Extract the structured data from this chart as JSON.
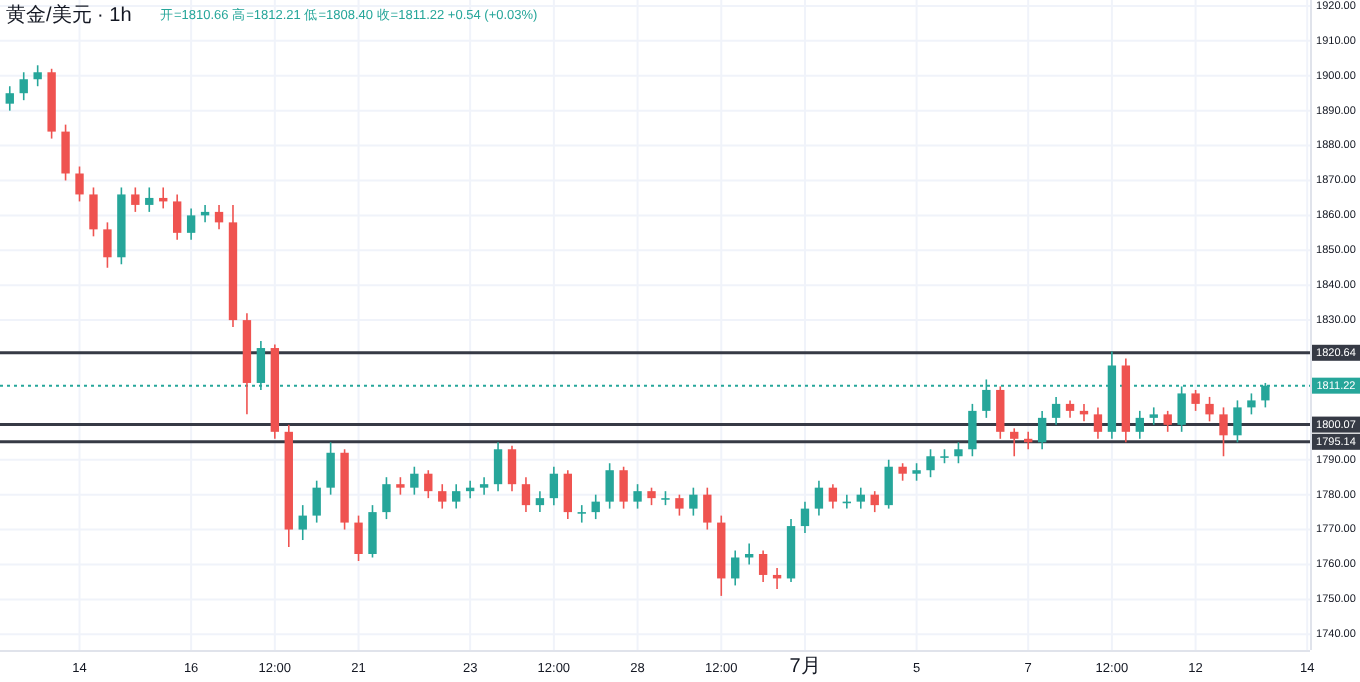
{
  "chart_data": {
    "type": "candlestick",
    "title": "黄金/美元 · 1h",
    "annotations": [
      "开=1810.66 高=1812.21 低=1808.40 收=1811.22 +0.54 (+0.03%)"
    ],
    "categories": [
      null,
      null,
      null,
      null,
      null,
      "14",
      null,
      null,
      null,
      null,
      null,
      null,
      null,
      "16",
      null,
      null,
      null,
      null,
      null,
      "12:00",
      null,
      null,
      null,
      null,
      null,
      "21",
      null,
      null,
      null,
      null,
      null,
      null,
      null,
      "23",
      null,
      null,
      null,
      null,
      null,
      "12:00",
      null,
      null,
      null,
      null,
      null,
      "28",
      null,
      null,
      null,
      null,
      null,
      "12:00",
      null,
      null,
      null,
      null,
      null,
      "7月",
      null,
      null,
      null,
      null,
      null,
      null,
      null,
      "5",
      null,
      null,
      null,
      null,
      null,
      null,
      null,
      "7",
      null,
      null,
      null,
      null,
      null,
      "12:00",
      null,
      null,
      null,
      null,
      null,
      "12",
      null,
      null,
      null,
      null,
      null,
      null,
      null,
      "14"
    ],
    "ohlc": [
      [
        1892,
        1897,
        1890,
        1895
      ],
      [
        1895,
        1901,
        1893,
        1899
      ],
      [
        1899,
        1903,
        1897,
        1901
      ],
      [
        1901,
        1902,
        1882,
        1884
      ],
      [
        1884,
        1886,
        1870,
        1872
      ],
      [
        1872,
        1874,
        1864,
        1866
      ],
      [
        1866,
        1868,
        1854,
        1856
      ],
      [
        1856,
        1858,
        1845,
        1848
      ],
      [
        1848,
        1868,
        1846,
        1866
      ],
      [
        1866,
        1868,
        1861,
        1863
      ],
      [
        1863,
        1868,
        1861,
        1865
      ],
      [
        1865,
        1868,
        1862,
        1864
      ],
      [
        1864,
        1866,
        1853,
        1855
      ],
      [
        1855,
        1862,
        1853,
        1860
      ],
      [
        1860,
        1863,
        1858,
        1861
      ],
      [
        1861,
        1863,
        1856,
        1858
      ],
      [
        1858,
        1863,
        1828,
        1830
      ],
      [
        1830,
        1832,
        1803,
        1812
      ],
      [
        1812,
        1824,
        1810,
        1822
      ],
      [
        1822,
        1823,
        1796,
        1798
      ],
      [
        1798,
        1800,
        1765,
        1770
      ],
      [
        1770,
        1777,
        1767,
        1774
      ],
      [
        1774,
        1784,
        1772,
        1782
      ],
      [
        1782,
        1795,
        1780,
        1792
      ],
      [
        1792,
        1793,
        1770,
        1772
      ],
      [
        1772,
        1774,
        1761,
        1763
      ],
      [
        1763,
        1777,
        1762,
        1775
      ],
      [
        1775,
        1785,
        1773,
        1783
      ],
      [
        1783,
        1785,
        1780,
        1782
      ],
      [
        1782,
        1788,
        1780,
        1786
      ],
      [
        1786,
        1787,
        1779,
        1781
      ],
      [
        1781,
        1783,
        1776,
        1778
      ],
      [
        1778,
        1783,
        1776,
        1781
      ],
      [
        1781,
        1784,
        1779,
        1782
      ],
      [
        1782,
        1785,
        1780,
        1783
      ],
      [
        1783,
        1795,
        1781,
        1793
      ],
      [
        1793,
        1794,
        1781,
        1783
      ],
      [
        1783,
        1785,
        1775,
        1777
      ],
      [
        1777,
        1781,
        1775,
        1779
      ],
      [
        1779,
        1788,
        1777,
        1786
      ],
      [
        1786,
        1787,
        1773,
        1775
      ],
      [
        1775,
        1777,
        1772,
        1775
      ],
      [
        1775,
        1780,
        1773,
        1778
      ],
      [
        1778,
        1789,
        1776,
        1787
      ],
      [
        1787,
        1788,
        1776,
        1778
      ],
      [
        1778,
        1783,
        1776,
        1781
      ],
      [
        1781,
        1782,
        1777,
        1779
      ],
      [
        1779,
        1781,
        1777,
        1779
      ],
      [
        1779,
        1780,
        1774,
        1776
      ],
      [
        1776,
        1782,
        1774,
        1780
      ],
      [
        1780,
        1782,
        1770,
        1772
      ],
      [
        1772,
        1774,
        1751,
        1756
      ],
      [
        1756,
        1764,
        1754,
        1762
      ],
      [
        1762,
        1766,
        1760,
        1763
      ],
      [
        1763,
        1764,
        1755,
        1757
      ],
      [
        1757,
        1759,
        1753,
        1756
      ],
      [
        1756,
        1773,
        1755,
        1771
      ],
      [
        1771,
        1778,
        1769,
        1776
      ],
      [
        1776,
        1784,
        1774,
        1782
      ],
      [
        1782,
        1783,
        1776,
        1778
      ],
      [
        1778,
        1780,
        1776,
        1778
      ],
      [
        1778,
        1782,
        1776,
        1780
      ],
      [
        1780,
        1781,
        1775,
        1777
      ],
      [
        1777,
        1790,
        1776,
        1788
      ],
      [
        1788,
        1789,
        1784,
        1786
      ],
      [
        1786,
        1789,
        1784,
        1787
      ],
      [
        1787,
        1793,
        1785,
        1791
      ],
      [
        1791,
        1793,
        1789,
        1791
      ],
      [
        1791,
        1795,
        1789,
        1793
      ],
      [
        1793,
        1806,
        1791,
        1804
      ],
      [
        1804,
        1813,
        1802,
        1810
      ],
      [
        1810,
        1811,
        1796,
        1798
      ],
      [
        1798,
        1799,
        1791,
        1796
      ],
      [
        1796,
        1798,
        1793,
        1795
      ],
      [
        1795,
        1804,
        1793,
        1802
      ],
      [
        1802,
        1808,
        1800,
        1806
      ],
      [
        1806,
        1807,
        1802,
        1804
      ],
      [
        1804,
        1806,
        1801,
        1803
      ],
      [
        1803,
        1805,
        1796,
        1798
      ],
      [
        1798,
        1821,
        1796,
        1817
      ],
      [
        1817,
        1819,
        1795,
        1798
      ],
      [
        1798,
        1804,
        1796,
        1802
      ],
      [
        1802,
        1805,
        1800,
        1803
      ],
      [
        1803,
        1804,
        1798,
        1800
      ],
      [
        1800,
        1811,
        1798,
        1809
      ],
      [
        1809,
        1810,
        1804,
        1806
      ],
      [
        1806,
        1808,
        1801,
        1803
      ],
      [
        1803,
        1805,
        1791,
        1797
      ],
      [
        1797,
        1807,
        1795,
        1805
      ],
      [
        1805,
        1809,
        1803,
        1807
      ],
      [
        1807,
        1812,
        1805,
        1811.22
      ],
      null,
      null,
      null
    ],
    "ylim": [
      1735.5,
      1921.7
    ],
    "yticks": [
      {
        "value": 1740,
        "label": "1740.00"
      },
      {
        "value": 1750,
        "label": "1750.00"
      },
      {
        "value": 1760,
        "label": "1760.00"
      },
      {
        "value": 1770,
        "label": "1770.00"
      },
      {
        "value": 1780,
        "label": "1780.00"
      },
      {
        "value": 1790,
        "label": "1790.00"
      },
      {
        "value": 1830,
        "label": "1830.00"
      },
      {
        "value": 1840,
        "label": "1840.00"
      },
      {
        "value": 1850,
        "label": "1850.00"
      },
      {
        "value": 1860,
        "label": "1860.00"
      },
      {
        "value": 1870,
        "label": "1870.00"
      },
      {
        "value": 1880,
        "label": "1880.00"
      },
      {
        "value": 1890,
        "label": "1890.00"
      },
      {
        "value": 1900,
        "label": "1900.00"
      },
      {
        "value": 1910,
        "label": "1910.00"
      },
      {
        "value": 1920,
        "label": "1920.00"
      }
    ],
    "ref_lines": [
      {
        "axis": "y",
        "value": 1820.64,
        "label": "1820.64",
        "color": "#363a45",
        "line_style": "solid"
      },
      {
        "axis": "y",
        "value": 1811.22,
        "label": "1811.22",
        "color": "#26a69a",
        "line_style": "dotted"
      },
      {
        "axis": "y",
        "value": 1800.07,
        "label": "1800.07",
        "color": "#363a45",
        "line_style": "solid"
      },
      {
        "axis": "y",
        "value": 1795.14,
        "label": "1795.14",
        "color": "#363a45",
        "line_style": "solid"
      }
    ],
    "grid": true
  }
}
